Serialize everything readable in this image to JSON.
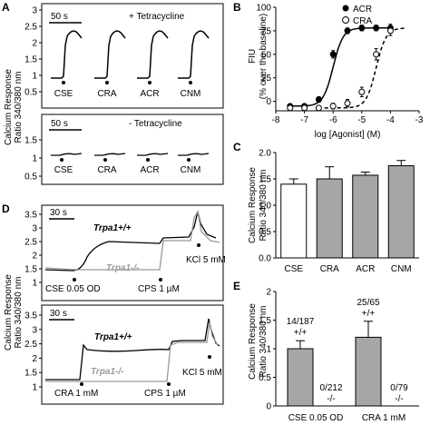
{
  "panels": {
    "A": {
      "letter": "A",
      "top": {
        "scale": "50 s",
        "condition": "+ Tetracycline",
        "agonists": [
          "CSE",
          "CRA",
          "ACR",
          "CNM"
        ]
      },
      "bottom": {
        "scale": "50 s",
        "condition": "- Tetracycline",
        "agonists": [
          "CSE",
          "CRA",
          "ACR",
          "CNM"
        ]
      },
      "ylabel": [
        "Calcium Response",
        "Ratio 340/380 nm"
      ],
      "yticks": [
        "3",
        "2.5",
        "2",
        "1.5",
        "1",
        "0.5"
      ],
      "yticks_bottom": [
        "1.5",
        "1",
        "0.5"
      ]
    },
    "B": {
      "letter": "B",
      "legend": [
        {
          "name": "ACR",
          "marker": "filled-circle"
        },
        {
          "name": "CRA",
          "marker": "open-circle"
        }
      ],
      "ylabel": [
        "FIU",
        "(% over the baseline)"
      ],
      "xlabel": "log [Agonist] (M)",
      "yticks": [
        "100",
        "75",
        "50",
        "25",
        "0"
      ],
      "xticks": [
        "-8",
        "-7",
        "-6",
        "-5",
        "-4",
        "-3"
      ]
    },
    "C": {
      "letter": "C",
      "ylabel": [
        "Calcium Response",
        "Ratio 340/380 nm"
      ],
      "yticks": [
        "2.0",
        "1.5",
        "1.0",
        "0.5",
        "0.0"
      ]
    },
    "D": {
      "letter": "D",
      "top": {
        "scale": "30 s",
        "wt": "Trpa1+/+",
        "ko": "Trpa1-/-",
        "stim1": "CSE 0.05 OD",
        "stim2": "CPS 1 µM",
        "stim3": "KCl 5 mM"
      },
      "bottom": {
        "scale": "30 s",
        "wt": "Trpa1+/+",
        "ko": "Trpa1-/-",
        "stim1": "CRA 1 mM",
        "stim2": "CPS 1 µM",
        "stim3": "KCl 5 mM"
      },
      "ylabel": [
        "Calcium Response",
        "Ratio 340/380 nm"
      ],
      "yticks": [
        "3.5",
        "3",
        "2.5",
        "2",
        "1.5",
        "1"
      ]
    },
    "E": {
      "letter": "E",
      "ylabel": [
        "Calcium Response",
        "Ratio 340/380 nm"
      ],
      "yticks": [
        "2",
        "1.5",
        "1",
        "0.5",
        "0"
      ],
      "group_labels": [
        "CSE 0.05 OD",
        "CRA 1 mM"
      ],
      "bar_labels": [
        {
          "count": "14/187",
          "genotype": "+/+"
        },
        {
          "count": "0/212",
          "genotype": "-/-"
        },
        {
          "count": "25/65",
          "genotype": "+/+"
        },
        {
          "count": "0/79",
          "genotype": "-/-"
        }
      ]
    }
  },
  "chart_data": [
    {
      "panel": "B",
      "type": "scatter",
      "xlabel": "log [Agonist] (M)",
      "ylabel": "FIU (% over the baseline)",
      "xlim": [
        -8,
        -3
      ],
      "ylim": [
        -10,
        100
      ],
      "series": [
        {
          "name": "ACR",
          "x": [
            -7.5,
            -7,
            -6.5,
            -6,
            -5.5,
            -5,
            -4.5,
            -4
          ],
          "y": [
            -5,
            -5,
            2,
            50,
            75,
            78,
            78,
            78
          ],
          "err": [
            2,
            2,
            3,
            4,
            3,
            3,
            3,
            4
          ]
        },
        {
          "name": "CRA",
          "x": [
            -7.5,
            -7,
            -6.5,
            -6,
            -5.5,
            -5,
            -4.5,
            -4
          ],
          "y": [
            -7,
            -7,
            -7,
            -5,
            -2,
            10,
            50,
            75
          ],
          "err": [
            2,
            2,
            2,
            3,
            4,
            5,
            6,
            5
          ]
        }
      ]
    },
    {
      "panel": "C",
      "type": "bar",
      "categories": [
        "CSE",
        "CRA",
        "ACR",
        "CNM"
      ],
      "values": [
        1.4,
        1.5,
        1.57,
        1.75
      ],
      "errors": [
        0.1,
        0.23,
        0.06,
        0.1
      ],
      "fills": [
        "#ffffff",
        "#a6a6a6",
        "#a6a6a6",
        "#a6a6a6"
      ],
      "ylim": [
        0,
        2
      ]
    },
    {
      "panel": "E",
      "type": "bar",
      "categories": [
        "CSE 0.05 OD +/+",
        "CSE 0.05 OD -/-",
        "CRA 1 mM +/+",
        "CRA 1 mM -/-"
      ],
      "values": [
        1.0,
        0,
        1.2,
        0
      ],
      "errors": [
        0.14,
        0,
        0.28,
        0
      ],
      "ylim": [
        0,
        2
      ]
    }
  ],
  "colors": {
    "trace": "#000000",
    "ko_trace": "#999999",
    "bar_gray": "#a6a6a6"
  }
}
